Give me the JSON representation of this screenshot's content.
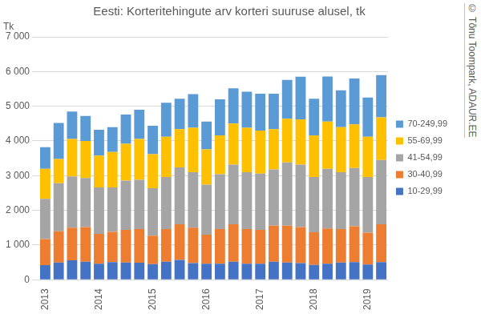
{
  "chart_data": {
    "type": "bar",
    "title": "Eesti: Korteritehingute arv korteri suuruse alusel, tk",
    "ylabel": "Tk",
    "annotations": [
      "© Tõnu Toompark, ADAUR.EE"
    ],
    "categories": [
      "2013",
      null,
      null,
      null,
      "2014",
      null,
      null,
      null,
      "2015",
      null,
      null,
      null,
      "2016",
      null,
      null,
      null,
      "2017",
      null,
      null,
      null,
      "2018",
      null,
      null,
      null,
      "2019",
      null
    ],
    "series": [
      {
        "name": "10-29,99",
        "color": "#4472c4",
        "values": [
          420,
          500,
          560,
          520,
          460,
          510,
          500,
          490,
          450,
          520,
          570,
          480,
          460,
          460,
          520,
          460,
          460,
          520,
          500,
          480,
          430,
          460,
          500,
          510,
          440,
          510
        ]
      },
      {
        "name": "30-40,99",
        "color": "#ed7d31",
        "values": [
          750,
          900,
          940,
          1000,
          860,
          870,
          940,
          970,
          820,
          940,
          1030,
          1020,
          840,
          1000,
          1080,
          1000,
          980,
          1040,
          1060,
          1040,
          940,
          1020,
          960,
          1030,
          920,
          1090
        ]
      },
      {
        "name": "41-54,99",
        "color": "#a5a5a5",
        "values": [
          1160,
          1380,
          1480,
          1410,
          1340,
          1280,
          1420,
          1420,
          1370,
          1500,
          1640,
          1600,
          1440,
          1580,
          1720,
          1640,
          1620,
          1620,
          1820,
          1800,
          1590,
          1720,
          1640,
          1680,
          1600,
          1850
        ]
      },
      {
        "name": "55-69,99",
        "color": "#ffc000",
        "values": [
          870,
          700,
          1080,
          1070,
          920,
          1020,
          1060,
          1180,
          980,
          1160,
          1100,
          1280,
          1020,
          1120,
          1180,
          1280,
          1240,
          1160,
          1260,
          1300,
          1200,
          1360,
          1300,
          1260,
          1160,
          1230
        ]
      },
      {
        "name": "70-249,99",
        "color": "#5b9bd5",
        "values": [
          620,
          1040,
          790,
          720,
          740,
          720,
          840,
          840,
          820,
          980,
          880,
          970,
          800,
          1040,
          1020,
          1040,
          1060,
          1020,
          1120,
          1230,
          1060,
          1300,
          1060,
          1320,
          1130,
          1220
        ]
      }
    ],
    "stacked": true,
    "legend": "right",
    "grid": true,
    "ylim": [
      0,
      7000
    ],
    "yticks": [
      0,
      {
        "value": 1000,
        "label": "1 000"
      },
      {
        "value": 2000,
        "label": "2 000"
      },
      {
        "value": 3000,
        "label": "3 000"
      },
      {
        "value": 4000,
        "label": "4 000"
      },
      {
        "value": 5000,
        "label": "5 000"
      },
      {
        "value": 6000,
        "label": "6 000"
      },
      {
        "value": 7000,
        "label": "7 000"
      }
    ]
  }
}
